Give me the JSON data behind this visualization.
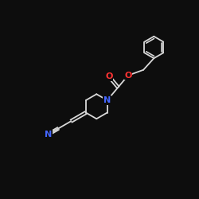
{
  "bg_color": "#0d0d0d",
  "bond_color": "#d8d8d8",
  "atom_colors": {
    "N": "#4466ff",
    "O": "#ff3333",
    "C": "#d8d8d8"
  },
  "font_size_N": 8,
  "font_size_O": 8,
  "line_width": 1.3,
  "figsize": [
    2.5,
    2.5
  ],
  "dpi": 100
}
